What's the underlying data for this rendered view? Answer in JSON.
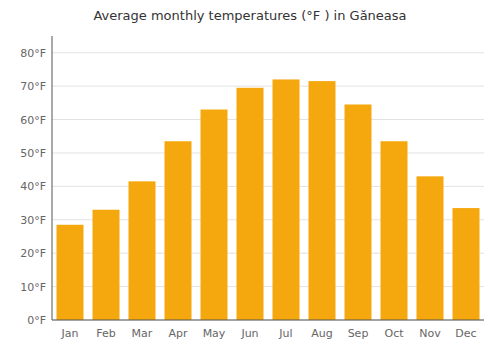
{
  "chart_data": {
    "type": "bar",
    "title": "Average monthly temperatures (°F ) in Găneasa",
    "categories": [
      "Jan",
      "Feb",
      "Mar",
      "Apr",
      "May",
      "Jun",
      "Jul",
      "Aug",
      "Sep",
      "Oct",
      "Nov",
      "Dec"
    ],
    "values": [
      28.5,
      33.0,
      41.5,
      53.5,
      63.0,
      69.5,
      72.0,
      71.5,
      64.5,
      53.5,
      43.0,
      33.5
    ],
    "color": "#F5A80D",
    "ylim": [
      0,
      85
    ],
    "yticks": [
      {
        "value": 0,
        "label": "0°F"
      },
      {
        "value": 10,
        "label": "10°F"
      },
      {
        "value": 20,
        "label": "20°F"
      },
      {
        "value": 30,
        "label": "30°F"
      },
      {
        "value": 40,
        "label": "40°F"
      },
      {
        "value": 50,
        "label": "50°F"
      },
      {
        "value": 60,
        "label": "60°F"
      },
      {
        "value": 70,
        "label": "70°F"
      },
      {
        "value": 80,
        "label": "80°F"
      }
    ],
    "grid": true
  }
}
